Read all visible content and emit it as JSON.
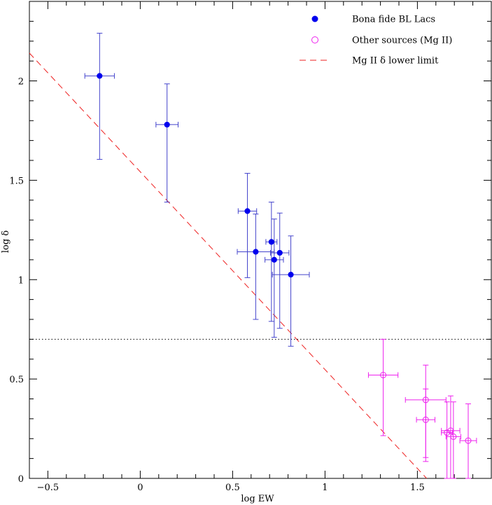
{
  "chart_data": {
    "type": "scatter",
    "xlabel": "log EW",
    "ylabel": "log δ",
    "xlim": [
      -0.6,
      1.9
    ],
    "ylim": [
      0,
      2.4
    ],
    "xticks": [
      -0.5,
      0,
      0.5,
      1,
      1.5
    ],
    "xtick_labels": [
      "−0.5",
      "0",
      "0.5",
      "1",
      "1.5"
    ],
    "yticks": [
      0,
      0.5,
      1,
      1.5,
      2
    ],
    "ytick_labels": [
      "0",
      "0.5",
      "1",
      "1.5",
      "2"
    ],
    "grid": false,
    "legend_position": "top-right",
    "series": [
      {
        "name": "Bona fide BL Lacs",
        "marker": "filled-circle",
        "color": "#0000ee",
        "errorbar_color": "#4444cc",
        "points": [
          {
            "x": -0.22,
            "y": 2.025,
            "xerr": 0.08,
            "yerr_lo": 0.42,
            "yerr_hi": 0.215
          },
          {
            "x": 0.145,
            "y": 1.78,
            "xerr": 0.06,
            "yerr_lo": 0.39,
            "yerr_hi": 0.205
          },
          {
            "x": 0.58,
            "y": 1.345,
            "xerr": 0.05,
            "yerr_lo": 0.335,
            "yerr_hi": 0.19
          },
          {
            "x": 0.625,
            "y": 1.14,
            "xerr": 0.1,
            "yerr_lo": 0.34,
            "yerr_hi": 0.19
          },
          {
            "x": 0.71,
            "y": 1.19,
            "xerr": 0.03,
            "yerr_lo": 0.4,
            "yerr_hi": 0.2
          },
          {
            "x": 0.725,
            "y": 1.1,
            "xerr": 0.05,
            "yerr_lo": 0.39,
            "yerr_hi": 0.205
          },
          {
            "x": 0.755,
            "y": 1.135,
            "xerr": 0.05,
            "yerr_lo": 0.38,
            "yerr_hi": 0.2
          },
          {
            "x": 0.815,
            "y": 1.025,
            "xerr": 0.1,
            "yerr_lo": 0.36,
            "yerr_hi": 0.195
          }
        ]
      },
      {
        "name": "Other sources (Mg II)",
        "marker": "open-circle",
        "color": "#ee22ee",
        "errorbar_color": "#ee22ee",
        "points": [
          {
            "x": 1.315,
            "y": 0.52,
            "xerr": 0.08,
            "yerr_lo": 0.305,
            "yerr_hi": 0.18
          },
          {
            "x": 1.545,
            "y": 0.395,
            "xerr": 0.11,
            "yerr_lo": 0.29,
            "yerr_hi": 0.175
          },
          {
            "x": 1.545,
            "y": 0.295,
            "xerr": 0.05,
            "yerr_lo": 0.21,
            "yerr_hi": 0.155
          },
          {
            "x": 1.66,
            "y": 0.23,
            "xerr": 0.03,
            "yerr_lo": 0.23,
            "yerr_hi": 0.155
          },
          {
            "x": 1.68,
            "y": 0.24,
            "xerr": 0.05,
            "yerr_lo": 0.24,
            "yerr_hi": 0.175
          },
          {
            "x": 1.695,
            "y": 0.21,
            "xerr": 0.04,
            "yerr_lo": 0.21,
            "yerr_hi": 0.175
          },
          {
            "x": 1.775,
            "y": 0.19,
            "xerr": 0.045,
            "yerr_lo": 0.19,
            "yerr_hi": 0.185
          }
        ]
      }
    ],
    "lines": [
      {
        "name": "Mg II δ lower limit",
        "style": "dashed",
        "color": "#ee2222",
        "x": [
          -0.6,
          1.55
        ],
        "y": [
          2.14,
          0
        ]
      },
      {
        "name": "",
        "style": "dotted",
        "color": "#000000",
        "x": [
          -0.6,
          1.9
        ],
        "y": [
          0.7,
          0.7
        ]
      }
    ],
    "legend": [
      {
        "label": "Bona fide BL Lacs",
        "symbol": "filled-circle",
        "color": "#0000ee"
      },
      {
        "label": "Other sources (Mg II)",
        "symbol": "open-circle",
        "color": "#ee22ee"
      },
      {
        "label": "Mg II δ lower limit",
        "symbol": "dashed-line",
        "color": "#ee2222"
      }
    ]
  }
}
